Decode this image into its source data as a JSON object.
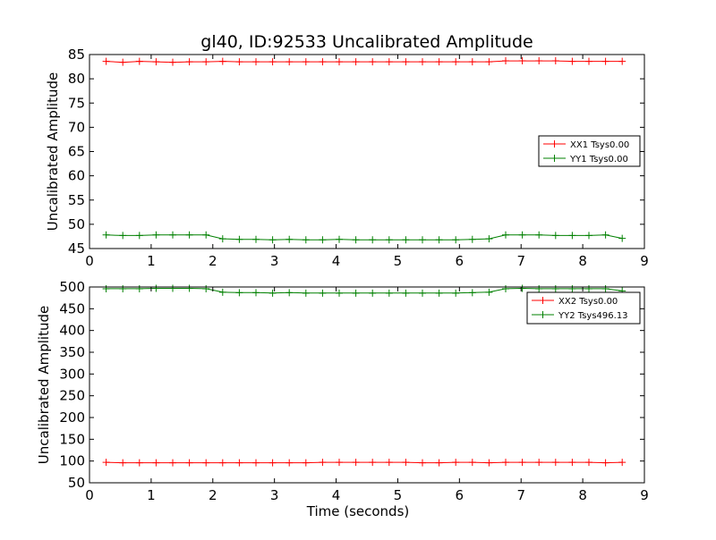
{
  "figure": {
    "title": "gl40, ID:92533 Uncalibrated Amplitude",
    "colors": {
      "red": "#ff0000",
      "green": "#008000"
    }
  },
  "chart_data": [
    {
      "type": "line",
      "title": "gl40, ID:92533 Uncalibrated Amplitude",
      "xlabel": "",
      "ylabel": "Uncalibrated Amplitude",
      "xlim": [
        0,
        9
      ],
      "ylim": [
        45,
        85
      ],
      "xticks": [
        "0",
        "1",
        "2",
        "3",
        "4",
        "5",
        "6",
        "7",
        "8",
        "9"
      ],
      "yticks": [
        "45",
        "50",
        "55",
        "60",
        "65",
        "70",
        "75",
        "80",
        "85"
      ],
      "grid": false,
      "legend_position": "center-right",
      "marker": "+",
      "series": [
        {
          "name": "XX1 Tsys0.00",
          "color": "#ff0000",
          "x": [
            0.27,
            0.54,
            0.81,
            1.08,
            1.35,
            1.62,
            1.89,
            2.16,
            2.43,
            2.7,
            2.97,
            3.24,
            3.51,
            3.78,
            4.05,
            4.32,
            4.59,
            4.86,
            5.13,
            5.4,
            5.67,
            5.94,
            6.21,
            6.48,
            6.75,
            7.02,
            7.29,
            7.56,
            7.83,
            8.1,
            8.37,
            8.64
          ],
          "y": [
            83.6,
            83.4,
            83.6,
            83.5,
            83.4,
            83.5,
            83.5,
            83.6,
            83.5,
            83.5,
            83.5,
            83.5,
            83.5,
            83.5,
            83.5,
            83.5,
            83.5,
            83.5,
            83.5,
            83.5,
            83.5,
            83.5,
            83.5,
            83.5,
            83.7,
            83.7,
            83.7,
            83.7,
            83.6,
            83.6,
            83.6,
            83.6
          ]
        },
        {
          "name": "YY1 Tsys0.00",
          "color": "#008000",
          "x": [
            0.27,
            0.54,
            0.81,
            1.08,
            1.35,
            1.62,
            1.89,
            2.16,
            2.43,
            2.7,
            2.97,
            3.24,
            3.51,
            3.78,
            4.05,
            4.32,
            4.59,
            4.86,
            5.13,
            5.4,
            5.67,
            5.94,
            6.21,
            6.48,
            6.75,
            7.02,
            7.29,
            7.56,
            7.83,
            8.1,
            8.37,
            8.64
          ],
          "y": [
            47.8,
            47.7,
            47.7,
            47.8,
            47.8,
            47.8,
            47.8,
            47.0,
            46.9,
            46.9,
            46.8,
            46.9,
            46.8,
            46.8,
            46.9,
            46.8,
            46.8,
            46.8,
            46.8,
            46.8,
            46.8,
            46.8,
            46.9,
            47.0,
            47.8,
            47.8,
            47.8,
            47.7,
            47.7,
            47.7,
            47.8,
            47.1
          ]
        }
      ]
    },
    {
      "type": "line",
      "title": "",
      "xlabel": "Time (seconds)",
      "ylabel": "Uncalibrated Amplitude",
      "xlim": [
        0,
        9
      ],
      "ylim": [
        50,
        500
      ],
      "xticks": [
        "0",
        "1",
        "2",
        "3",
        "4",
        "5",
        "6",
        "7",
        "8",
        "9"
      ],
      "yticks": [
        "50",
        "100",
        "150",
        "200",
        "250",
        "300",
        "350",
        "400",
        "450",
        "500"
      ],
      "grid": false,
      "legend_position": "top-right",
      "marker": "+",
      "series": [
        {
          "name": "XX2 Tsys0.00",
          "color": "#ff0000",
          "x": [
            0.27,
            0.54,
            0.81,
            1.08,
            1.35,
            1.62,
            1.89,
            2.16,
            2.43,
            2.7,
            2.97,
            3.24,
            3.51,
            3.78,
            4.05,
            4.32,
            4.59,
            4.86,
            5.13,
            5.4,
            5.67,
            5.94,
            6.21,
            6.48,
            6.75,
            7.02,
            7.29,
            7.56,
            7.83,
            8.1,
            8.37,
            8.64
          ],
          "y": [
            97,
            96,
            96,
            96,
            96,
            96,
            96,
            96,
            96,
            96,
            96,
            96,
            96,
            97,
            97,
            97,
            97,
            97,
            97,
            96,
            96,
            97,
            97,
            96,
            97,
            97,
            97,
            97,
            97,
            97,
            96,
            97
          ]
        },
        {
          "name": "YY2 Tsys496.13",
          "color": "#008000",
          "x": [
            0.27,
            0.54,
            0.81,
            1.08,
            1.35,
            1.62,
            1.89,
            2.16,
            2.43,
            2.7,
            2.97,
            3.24,
            3.51,
            3.78,
            4.05,
            4.32,
            4.59,
            4.86,
            5.13,
            5.4,
            5.67,
            5.94,
            6.21,
            6.48,
            6.75,
            7.02,
            7.29,
            7.56,
            7.83,
            8.1,
            8.37,
            8.64
          ],
          "y": [
            496,
            496,
            496,
            497,
            497,
            497,
            496,
            488,
            487,
            487,
            486,
            487,
            486,
            486,
            486,
            486,
            486,
            486,
            486,
            486,
            486,
            486,
            487,
            488,
            496,
            497,
            496,
            496,
            496,
            496,
            496,
            491
          ]
        }
      ]
    }
  ]
}
